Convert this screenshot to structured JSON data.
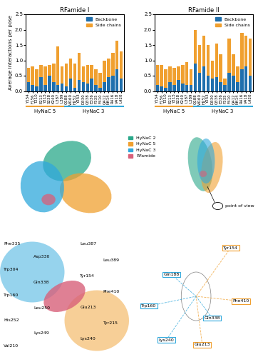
{
  "chart_data": [
    {
      "type": "bar",
      "title": "RFamide I",
      "stacked": true,
      "y_label": "Average interactions per pose",
      "categories": [
        "Y154",
        "F156",
        "T210",
        "E213",
        "Y215",
        "S238",
        "K240",
        "L387",
        "L389",
        "Q188",
        "W160",
        "H252",
        "Y253",
        "D330",
        "Q338",
        "E336",
        "F335",
        "F410",
        "Q412",
        "N414",
        "R416",
        "V418",
        "L420"
      ],
      "groups": [
        {
          "name": "HyNaC 5",
          "count": 9,
          "color": "#f0a030"
        },
        {
          "name": "HyNaC 3",
          "count": 14,
          "color": "#2fa8dc"
        }
      ],
      "series": [
        {
          "name": "Backbone",
          "color": "#1f6fad",
          "values": [
            0.3,
            0.2,
            0.15,
            0.45,
            0.2,
            0.5,
            0.3,
            0.2,
            0.25,
            0.15,
            0.4,
            0.1,
            0.35,
            0.3,
            0.25,
            0.4,
            0.2,
            0.1,
            0.3,
            0.45,
            0.5,
            0.7,
            0.4
          ]
        },
        {
          "name": "Side chains",
          "color": "#f0a030",
          "values": [
            0.45,
            0.6,
            0.55,
            0.4,
            0.6,
            0.35,
            0.6,
            1.25,
            0.55,
            0.75,
            0.65,
            0.8,
            0.9,
            0.5,
            0.6,
            0.45,
            0.5,
            0.5,
            0.7,
            0.6,
            0.75,
            0.95,
            0.9
          ]
        }
      ],
      "ylim": [
        0,
        2.5
      ],
      "yticks": [
        {
          "value": 0,
          "label": "0.0"
        },
        {
          "value": 0.5,
          "label": "0.5"
        },
        {
          "value": 1,
          "label": "1.0"
        },
        {
          "value": 1.5,
          "label": "1.5"
        },
        {
          "value": 2,
          "label": "2.0"
        },
        {
          "value": 2.5,
          "label": "2.5"
        }
      ],
      "legend": "upper right"
    },
    {
      "type": "bar",
      "title": "RFamide II",
      "stacked": true,
      "categories": [
        "Y154",
        "F156",
        "T210",
        "E213",
        "Y215",
        "S238",
        "K240",
        "L387",
        "L389",
        "Q188",
        "W160",
        "H252",
        "Y253",
        "D330",
        "Q338",
        "E336",
        "F335",
        "F410",
        "Q412",
        "N414",
        "R416",
        "V418",
        "L420"
      ],
      "groups": [
        {
          "name": "HyNaC 5",
          "count": 9,
          "color": "#f0a030"
        },
        {
          "name": "HyNaC 3",
          "count": 14,
          "color": "#2fa8dc"
        }
      ],
      "series": [
        {
          "name": "Backbone",
          "color": "#1f6fad",
          "values": [
            0.2,
            0.15,
            0.1,
            0.3,
            0.2,
            0.35,
            0.25,
            0.2,
            0.2,
            0.9,
            0.6,
            0.8,
            0.5,
            0.4,
            0.45,
            0.3,
            0.2,
            0.6,
            0.5,
            0.3,
            0.7,
            0.8,
            0.5
          ]
        },
        {
          "name": "Side chains",
          "color": "#f0a030",
          "values": [
            0.65,
            0.7,
            0.6,
            0.5,
            0.55,
            0.45,
            0.6,
            0.75,
            0.5,
            1.1,
            0.9,
            1.0,
            1.0,
            0.6,
            1.1,
            0.9,
            0.2,
            1.1,
            0.7,
            0.5,
            1.2,
            1.0,
            1.2
          ]
        }
      ],
      "ylim": [
        0,
        2.5
      ],
      "yticks": [
        {
          "value": 0,
          "label": "0.0"
        },
        {
          "value": 0.5,
          "label": "0.5"
        },
        {
          "value": 1,
          "label": "1.0"
        },
        {
          "value": 1.5,
          "label": "1.5"
        },
        {
          "value": 2,
          "label": "2.0"
        },
        {
          "value": 2.5,
          "label": "2.5"
        }
      ],
      "legend": "upper right"
    }
  ],
  "panels": {
    "B": {
      "legend": [
        {
          "name": "HyNaC 2",
          "color": "#2aa88a"
        },
        {
          "name": "HyNaC 5",
          "color": "#f0a030"
        },
        {
          "name": "HyNaC 3",
          "color": "#2fa8dc"
        },
        {
          "name": "RFamide",
          "color": "#d8607a"
        }
      ]
    },
    "C": {
      "label": "point of view"
    },
    "D": {
      "residues": [
        {
          "name": "Phe335",
          "color": "#2fa8dc"
        },
        {
          "name": "Asp330",
          "color": "#2fa8dc"
        },
        {
          "name": "Trp304",
          "color": "#2fa8dc"
        },
        {
          "name": "Gln338",
          "color": "#2fa8dc"
        },
        {
          "name": "Trp160",
          "color": "#2fa8dc"
        },
        {
          "name": "Leu250",
          "color": "#2fa8dc"
        },
        {
          "name": "His252",
          "color": "#2fa8dc"
        },
        {
          "name": "Lys249",
          "color": "#2fa8dc"
        },
        {
          "name": "Val210",
          "color": "#2fa8dc"
        },
        {
          "name": "Leu387",
          "color": "#f0a030"
        },
        {
          "name": "Leu389",
          "color": "#f0a030"
        },
        {
          "name": "Tyr154",
          "color": "#f0a030"
        },
        {
          "name": "Phe410",
          "color": "#f0a030"
        },
        {
          "name": "Glu213",
          "color": "#f0a030"
        },
        {
          "name": "Tyr215",
          "color": "#f0a030"
        },
        {
          "name": "Lys240",
          "color": "#f0a030"
        }
      ]
    },
    "E": {
      "residues": [
        {
          "name": "Tyr154",
          "color": "#f0a030"
        },
        {
          "name": "Gln188",
          "color": "#2fa8dc"
        },
        {
          "name": "Trp160",
          "color": "#2fa8dc"
        },
        {
          "name": "Phe410",
          "color": "#f0a030"
        },
        {
          "name": "Gln338",
          "color": "#2fa8dc"
        },
        {
          "name": "Lys240",
          "color": "#2fa8dc"
        },
        {
          "name": "Glu213",
          "color": "#f0a030"
        }
      ]
    }
  }
}
